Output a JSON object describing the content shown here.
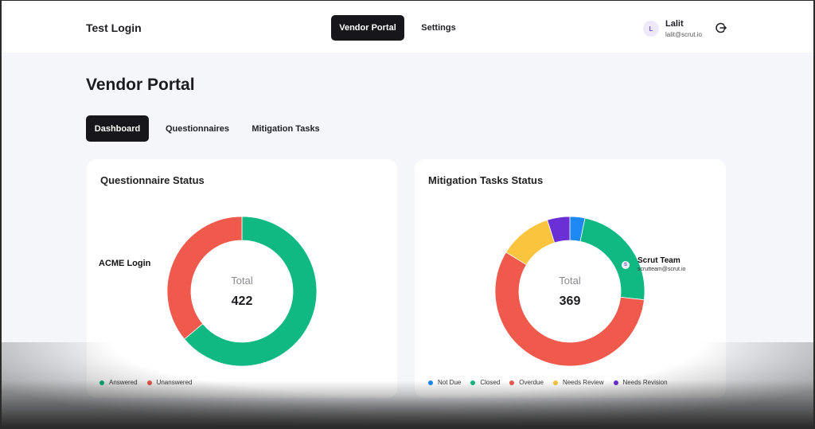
{
  "header": {
    "brand": "Test Login",
    "nav": [
      {
        "label": "Vendor Portal",
        "active": true
      },
      {
        "label": "Settings",
        "active": false
      }
    ],
    "user": {
      "initial": "L",
      "name": "Lalit",
      "email": "lalit@scrut.io"
    },
    "logout_icon": "logout-icon"
  },
  "page": {
    "title": "Vendor Portal",
    "tabs": [
      {
        "label": "Dashboard",
        "active": true
      },
      {
        "label": "Questionnaires",
        "active": false
      },
      {
        "label": "Mitigation Tasks",
        "active": false
      }
    ]
  },
  "overlays": {
    "acme_label": "ACME Login",
    "scrut": {
      "initial": "S",
      "name": "Scrut Team",
      "email": "scrutteam@scrut.io"
    }
  },
  "cards": {
    "questionnaire": {
      "title": "Questionnaire Status",
      "center_label": "Total",
      "total": "422",
      "legend": [
        {
          "label": "Answered",
          "color": "#10b981"
        },
        {
          "label": "Unanswered",
          "color": "#ef5a4c"
        }
      ]
    },
    "mitigation": {
      "title": "Mitigation Tasks Status",
      "center_label": "Total",
      "total": "369",
      "legend": [
        {
          "label": "Not Due",
          "color": "#1e88f5"
        },
        {
          "label": "Closed",
          "color": "#10b981"
        },
        {
          "label": "Overdue",
          "color": "#ef5a4c"
        },
        {
          "label": "Needs Review",
          "color": "#fbc43e"
        },
        {
          "label": "Needs Revision",
          "color": "#6b2fd6"
        }
      ]
    }
  },
  "chart_data": [
    {
      "type": "pie",
      "subtype": "donut",
      "title": "Questionnaire Status",
      "center_text": "Total 422",
      "categories": [
        "Answered",
        "Unanswered"
      ],
      "values": [
        270,
        152
      ],
      "colors": [
        "#10b981",
        "#ef5a4c"
      ],
      "total": 422,
      "legend_position": "bottom"
    },
    {
      "type": "pie",
      "subtype": "donut",
      "title": "Mitigation Tasks Status",
      "center_text": "Total 369",
      "categories": [
        "Not Due",
        "Closed",
        "Overdue",
        "Needs Review",
        "Needs Revision"
      ],
      "values": [
        12,
        87,
        210,
        42,
        18
      ],
      "colors": [
        "#1e88f5",
        "#10b981",
        "#ef5a4c",
        "#fbc43e",
        "#6b2fd6"
      ],
      "total": 369,
      "legend_position": "bottom"
    }
  ]
}
